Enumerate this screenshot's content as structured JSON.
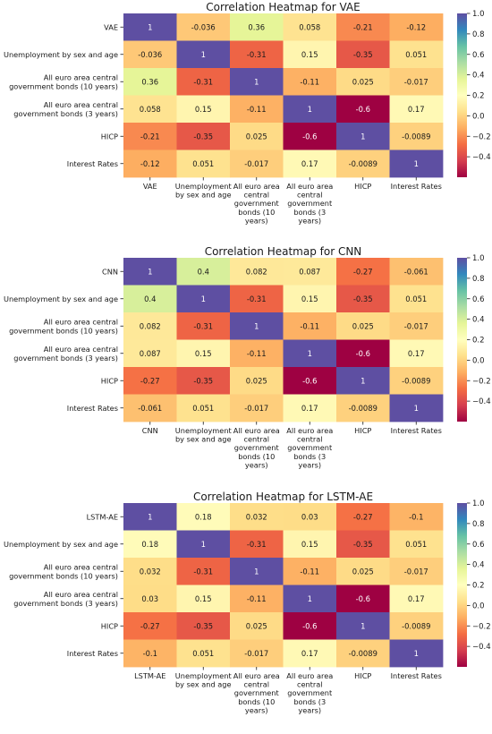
{
  "colors": {
    "scale": [
      "#9e0142",
      "#d53e4f",
      "#f46d43",
      "#fdae61",
      "#fee08b",
      "#ffffbf",
      "#e6f598",
      "#abdda4",
      "#66c2a5",
      "#3288bd",
      "#5e4fa2"
    ],
    "text_dark": "#1a1a1a",
    "text_light": "#ffffff"
  },
  "chart_data": [
    {
      "type": "heatmap",
      "title": "Correlation Heatmap for VAE",
      "row_labels": [
        [
          "VAE"
        ],
        [
          "Unemployment by sex and age"
        ],
        [
          "All euro area central",
          "government bonds (10 years)"
        ],
        [
          "All euro area central",
          "government bonds (3 years)"
        ],
        [
          "HICP"
        ],
        [
          "Interest Rates"
        ]
      ],
      "col_labels": [
        [
          "VAE"
        ],
        [
          "Unemployment",
          "by sex and age"
        ],
        [
          "All euro area",
          "central",
          "government",
          "bonds (10",
          "years)"
        ],
        [
          "All euro area",
          "central",
          "government",
          "bonds (3",
          "years)"
        ],
        [
          "HICP"
        ],
        [
          "Interest Rates"
        ]
      ],
      "values": [
        [
          1,
          -0.036,
          0.36,
          0.058,
          -0.21,
          -0.12
        ],
        [
          -0.036,
          1,
          -0.31,
          0.15,
          -0.35,
          0.051
        ],
        [
          0.36,
          -0.31,
          1,
          -0.11,
          0.025,
          -0.017
        ],
        [
          0.058,
          0.15,
          -0.11,
          1,
          -0.6,
          0.17
        ],
        [
          -0.21,
          -0.35,
          0.025,
          -0.6,
          1,
          -0.0089
        ],
        [
          -0.12,
          0.051,
          -0.017,
          0.17,
          -0.0089,
          1
        ]
      ],
      "value_labels": [
        [
          "1",
          "-0.036",
          "0.36",
          "0.058",
          "-0.21",
          "-0.12"
        ],
        [
          "-0.036",
          "1",
          "-0.31",
          "0.15",
          "-0.35",
          "0.051"
        ],
        [
          "0.36",
          "-0.31",
          "1",
          "-0.11",
          "0.025",
          "-0.017"
        ],
        [
          "0.058",
          "0.15",
          "-0.11",
          "1",
          "-0.6",
          "0.17"
        ],
        [
          "-0.21",
          "-0.35",
          "0.025",
          "-0.6",
          "1",
          "-0.0089"
        ],
        [
          "-0.12",
          "0.051",
          "-0.017",
          "0.17",
          "-0.0089",
          "1"
        ]
      ],
      "vmin": -0.6,
      "vmax": 1.0,
      "colorbar_ticks": [
        "1.0",
        "0.8",
        "0.6",
        "0.4",
        "0.2",
        "0.0",
        "−0.2",
        "−0.4"
      ],
      "colormap": "Spectral"
    },
    {
      "type": "heatmap",
      "title": "Correlation Heatmap for CNN",
      "row_labels": [
        [
          "CNN"
        ],
        [
          "Unemployment by sex and age"
        ],
        [
          "All euro area central",
          "government bonds (10 years)"
        ],
        [
          "All euro area central",
          "government bonds (3 years)"
        ],
        [
          "HICP"
        ],
        [
          "Interest Rates"
        ]
      ],
      "col_labels": [
        [
          "CNN"
        ],
        [
          "Unemployment",
          "by sex and age"
        ],
        [
          "All euro area",
          "central",
          "government",
          "bonds (10",
          "years)"
        ],
        [
          "All euro area",
          "central",
          "government",
          "bonds (3",
          "years)"
        ],
        [
          "HICP"
        ],
        [
          "Interest Rates"
        ]
      ],
      "values": [
        [
          1,
          0.4,
          0.082,
          0.087,
          -0.27,
          -0.061
        ],
        [
          0.4,
          1,
          -0.31,
          0.15,
          -0.35,
          0.051
        ],
        [
          0.082,
          -0.31,
          1,
          -0.11,
          0.025,
          -0.017
        ],
        [
          0.087,
          0.15,
          -0.11,
          1,
          -0.6,
          0.17
        ],
        [
          -0.27,
          -0.35,
          0.025,
          -0.6,
          1,
          -0.0089
        ],
        [
          -0.061,
          0.051,
          -0.017,
          0.17,
          -0.0089,
          1
        ]
      ],
      "value_labels": [
        [
          "1",
          "0.4",
          "0.082",
          "0.087",
          "-0.27",
          "-0.061"
        ],
        [
          "0.4",
          "1",
          "-0.31",
          "0.15",
          "-0.35",
          "0.051"
        ],
        [
          "0.082",
          "-0.31",
          "1",
          "-0.11",
          "0.025",
          "-0.017"
        ],
        [
          "0.087",
          "0.15",
          "-0.11",
          "1",
          "-0.6",
          "0.17"
        ],
        [
          "-0.27",
          "-0.35",
          "0.025",
          "-0.6",
          "1",
          "-0.0089"
        ],
        [
          "-0.061",
          "0.051",
          "-0.017",
          "0.17",
          "-0.0089",
          "1"
        ]
      ],
      "vmin": -0.6,
      "vmax": 1.0,
      "colorbar_ticks": [
        "1.0",
        "0.8",
        "0.6",
        "0.4",
        "0.2",
        "0.0",
        "−0.2",
        "−0.4"
      ],
      "colormap": "Spectral"
    },
    {
      "type": "heatmap",
      "title": "Correlation Heatmap for LSTM-AE",
      "row_labels": [
        [
          "LSTM-AE"
        ],
        [
          "Unemployment by sex and age"
        ],
        [
          "All euro area central",
          "government bonds (10 years)"
        ],
        [
          "All euro area central",
          "government bonds (3 years)"
        ],
        [
          "HICP"
        ],
        [
          "Interest Rates"
        ]
      ],
      "col_labels": [
        [
          "LSTM-AE"
        ],
        [
          "Unemployment",
          "by sex and age"
        ],
        [
          "All euro area",
          "central",
          "government",
          "bonds (10",
          "years)"
        ],
        [
          "All euro area",
          "central",
          "government",
          "bonds (3",
          "years)"
        ],
        [
          "HICP"
        ],
        [
          "Interest Rates"
        ]
      ],
      "values": [
        [
          1,
          0.18,
          0.032,
          0.03,
          -0.27,
          -0.1
        ],
        [
          0.18,
          1,
          -0.31,
          0.15,
          -0.35,
          0.051
        ],
        [
          0.032,
          -0.31,
          1,
          -0.11,
          0.025,
          -0.017
        ],
        [
          0.03,
          0.15,
          -0.11,
          1,
          -0.6,
          0.17
        ],
        [
          -0.27,
          -0.35,
          0.025,
          -0.6,
          1,
          -0.0089
        ],
        [
          -0.1,
          0.051,
          -0.017,
          0.17,
          -0.0089,
          1
        ]
      ],
      "value_labels": [
        [
          "1",
          "0.18",
          "0.032",
          "0.03",
          "-0.27",
          "-0.1"
        ],
        [
          "0.18",
          "1",
          "-0.31",
          "0.15",
          "-0.35",
          "0.051"
        ],
        [
          "0.032",
          "-0.31",
          "1",
          "-0.11",
          "0.025",
          "-0.017"
        ],
        [
          "0.03",
          "0.15",
          "-0.11",
          "1",
          "-0.6",
          "0.17"
        ],
        [
          "-0.27",
          "-0.35",
          "0.025",
          "-0.6",
          "1",
          "-0.0089"
        ],
        [
          "-0.1",
          "0.051",
          "-0.017",
          "0.17",
          "-0.0089",
          "1"
        ]
      ],
      "vmin": -0.6,
      "vmax": 1.0,
      "colorbar_ticks": [
        "1.0",
        "0.8",
        "0.6",
        "0.4",
        "0.2",
        "0.0",
        "−0.2",
        "−0.4"
      ],
      "colormap": "Spectral"
    }
  ]
}
